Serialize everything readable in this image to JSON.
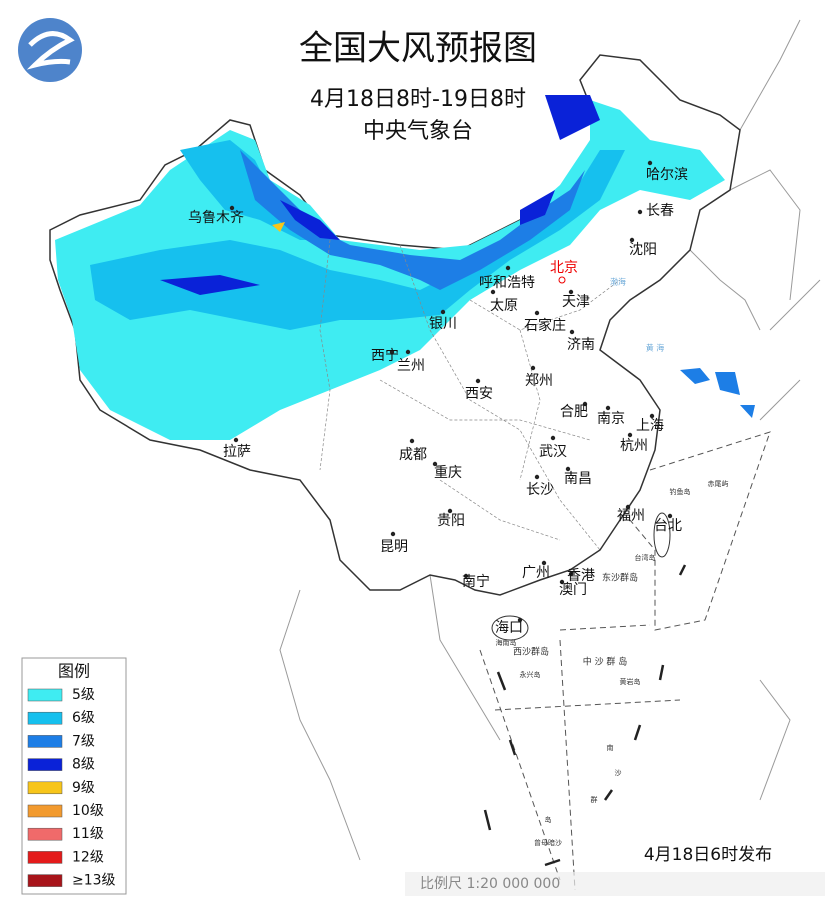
{
  "header": {
    "title": "全国大风预报图",
    "period": "4月18日8时-19日8时",
    "issuer": "中央气象台"
  },
  "cities": [
    "乌鲁木齐",
    "哈尔滨",
    "长春",
    "沈阳",
    "呼和浩特",
    "天津",
    "太原",
    "石家庄",
    "银川",
    "济南",
    "西宁",
    "兰州",
    "西安",
    "郑州",
    "合肥",
    "南京",
    "上海",
    "杭州",
    "拉萨",
    "成都",
    "武汉",
    "重庆",
    "南昌",
    "长沙",
    "福州",
    "台北",
    "贵阳",
    "昆明",
    "南宁",
    "广州",
    "香港",
    "澳门",
    "海口"
  ],
  "capital": "北京",
  "islands": [
    "钓鱼岛",
    "赤尾屿",
    "台湾岛",
    "东沙群岛",
    "海南岛",
    "西沙群岛",
    "永兴岛",
    "中 沙 群 岛",
    "黄岩岛",
    "南",
    "沙",
    "群",
    "岛",
    "曾母暗沙"
  ],
  "seas": [
    "渤海",
    "黄 海"
  ],
  "legend": {
    "title": "图例",
    "items": [
      {
        "label": "5级",
        "color": "#3fecf2"
      },
      {
        "label": "6级",
        "color": "#16c0ee"
      },
      {
        "label": "7级",
        "color": "#1d7ee6"
      },
      {
        "label": "8级",
        "color": "#0a22d8"
      },
      {
        "label": "9级",
        "color": "#f7c51a"
      },
      {
        "label": "10级",
        "color": "#f29a2e"
      },
      {
        "label": "11级",
        "color": "#f06a6a"
      },
      {
        "label": "12级",
        "color": "#e41a1a"
      },
      {
        "label": "≥13级",
        "color": "#a8141a"
      }
    ]
  },
  "footer": {
    "issued": "4月18日6时发布",
    "scale": "比例尺 1:20 000 000"
  }
}
